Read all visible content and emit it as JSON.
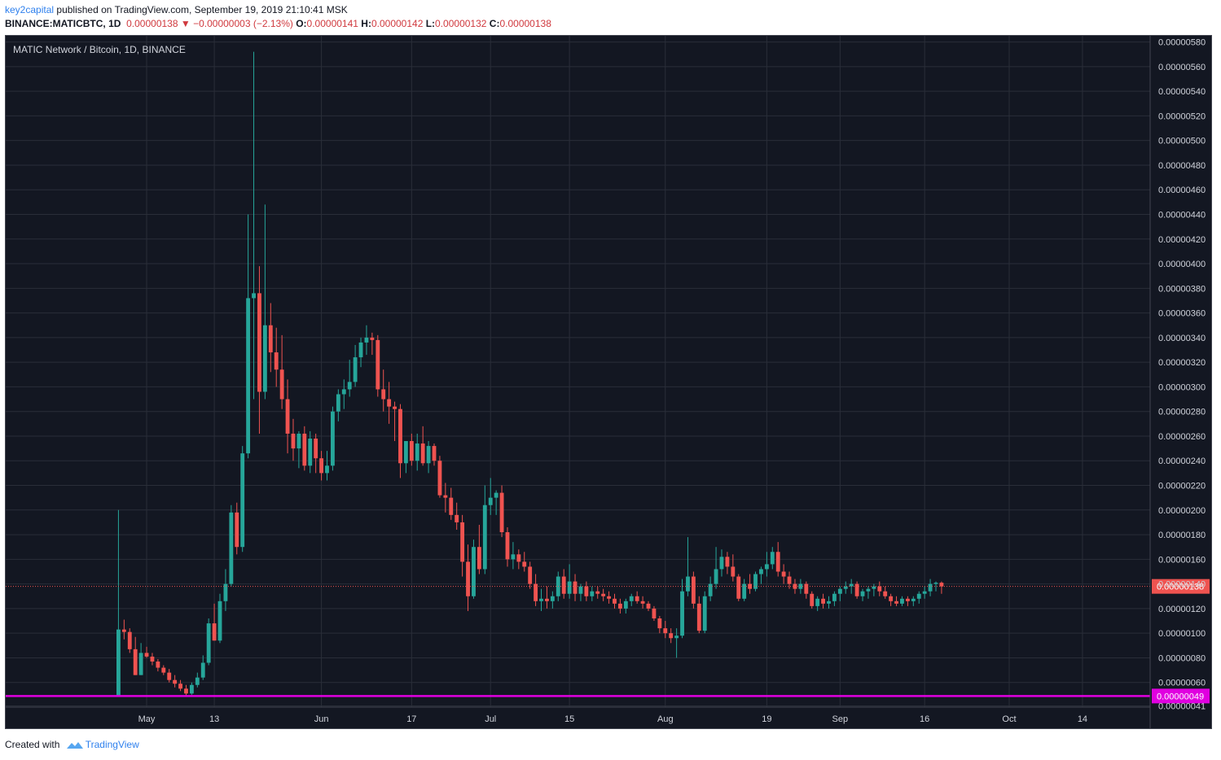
{
  "header": {
    "author": "key2capital",
    "published_text": "published on TradingView.com, September 19, 2019 21:10:41 MSK",
    "symbol": "BINANCE:MATICBTC, 1D",
    "last": "0.00000138",
    "change_arrow": "▼",
    "change": "−0.00000003 (−2.13%)",
    "o_label": "O:",
    "o_value": "0.00000141",
    "h_label": "H:",
    "h_value": "0.00000142",
    "l_label": "L:",
    "l_value": "0.00000132",
    "c_label": "C:",
    "c_value": "0.00000138"
  },
  "footer": {
    "created_with": "Created with",
    "brand": "TradingView",
    "logo_icon": "tradingview-logo-icon"
  },
  "colors": {
    "background": "#131722",
    "grid": "#2a2e39",
    "up": "#26a69a",
    "down": "#ef5350",
    "support": "#e000e0",
    "last_price": "#ef5350",
    "axis_text": "#d1d4dc"
  },
  "chart_data": {
    "type": "candlestick",
    "title": "MATIC Network / Bitcoin, 1D, BINANCE",
    "x_ticks": [
      "May",
      "13",
      "Jun",
      "17",
      "Jul",
      "15",
      "Aug",
      "19",
      "Sep",
      "16",
      "Oct",
      "14"
    ],
    "x_tick_dates": [
      "2019-05-01",
      "2019-05-13",
      "2019-06-01",
      "2019-06-17",
      "2019-07-01",
      "2019-07-15",
      "2019-08-01",
      "2019-08-19",
      "2019-09-01",
      "2019-09-16",
      "2019-10-01",
      "2019-10-14"
    ],
    "x_range": [
      "2019-04-06",
      "2019-10-26"
    ],
    "y_ticks": [
      "0.00000580",
      "0.00000560",
      "0.00000540",
      "0.00000520",
      "0.00000500",
      "0.00000480",
      "0.00000460",
      "0.00000440",
      "0.00000420",
      "0.00000400",
      "0.00000380",
      "0.00000360",
      "0.00000340",
      "0.00000320",
      "0.00000300",
      "0.00000280",
      "0.00000260",
      "0.00000240",
      "0.00000220",
      "0.00000200",
      "0.00000180",
      "0.00000160",
      "0.00000140",
      "0.00000120",
      "0.00000100",
      "0.00000080",
      "0.00000060",
      "0.00000041"
    ],
    "y_range": [
      4e-07,
      5.85e-06
    ],
    "last_price_label": "0.00000138",
    "last_price": 1.38e-06,
    "support_label": "0.00000049",
    "support_level": 4.9e-07,
    "grid": true,
    "ohlc_units": "1e-8 BTC",
    "candles": [
      {
        "date": "2019-04-26",
        "o": 49,
        "h": 200,
        "l": 49,
        "c": 103
      },
      {
        "date": "2019-04-27",
        "o": 103,
        "h": 111,
        "l": 95,
        "c": 101
      },
      {
        "date": "2019-04-28",
        "o": 101,
        "h": 104,
        "l": 84,
        "c": 87
      },
      {
        "date": "2019-04-29",
        "o": 87,
        "h": 97,
        "l": 66,
        "c": 66
      },
      {
        "date": "2019-04-30",
        "o": 66,
        "h": 92,
        "l": 66,
        "c": 84
      },
      {
        "date": "2019-05-01",
        "o": 84,
        "h": 89,
        "l": 80,
        "c": 81
      },
      {
        "date": "2019-05-02",
        "o": 81,
        "h": 84,
        "l": 74,
        "c": 77
      },
      {
        "date": "2019-05-03",
        "o": 77,
        "h": 79,
        "l": 69,
        "c": 72
      },
      {
        "date": "2019-05-04",
        "o": 72,
        "h": 74,
        "l": 66,
        "c": 68
      },
      {
        "date": "2019-05-05",
        "o": 68,
        "h": 71,
        "l": 60,
        "c": 62
      },
      {
        "date": "2019-05-06",
        "o": 62,
        "h": 66,
        "l": 56,
        "c": 59
      },
      {
        "date": "2019-05-07",
        "o": 59,
        "h": 62,
        "l": 53,
        "c": 55
      },
      {
        "date": "2019-05-08",
        "o": 55,
        "h": 58,
        "l": 49,
        "c": 51
      },
      {
        "date": "2019-05-09",
        "o": 51,
        "h": 60,
        "l": 50,
        "c": 58
      },
      {
        "date": "2019-05-10",
        "o": 58,
        "h": 68,
        "l": 56,
        "c": 64
      },
      {
        "date": "2019-05-11",
        "o": 64,
        "h": 82,
        "l": 62,
        "c": 76
      },
      {
        "date": "2019-05-12",
        "o": 76,
        "h": 112,
        "l": 74,
        "c": 108
      },
      {
        "date": "2019-05-13",
        "o": 108,
        "h": 124,
        "l": 94,
        "c": 94
      },
      {
        "date": "2019-05-14",
        "o": 94,
        "h": 132,
        "l": 92,
        "c": 126
      },
      {
        "date": "2019-05-15",
        "o": 126,
        "h": 152,
        "l": 118,
        "c": 140
      },
      {
        "date": "2019-05-16",
        "o": 140,
        "h": 204,
        "l": 138,
        "c": 198
      },
      {
        "date": "2019-05-17",
        "o": 198,
        "h": 206,
        "l": 164,
        "c": 170
      },
      {
        "date": "2019-05-18",
        "o": 170,
        "h": 252,
        "l": 166,
        "c": 246
      },
      {
        "date": "2019-05-19",
        "o": 246,
        "h": 440,
        "l": 242,
        "c": 372
      },
      {
        "date": "2019-05-20",
        "o": 372,
        "h": 572,
        "l": 290,
        "c": 376
      },
      {
        "date": "2019-05-21",
        "o": 376,
        "h": 398,
        "l": 262,
        "c": 296
      },
      {
        "date": "2019-05-22",
        "o": 296,
        "h": 448,
        "l": 290,
        "c": 350
      },
      {
        "date": "2019-05-23",
        "o": 350,
        "h": 368,
        "l": 312,
        "c": 328
      },
      {
        "date": "2019-05-24",
        "o": 328,
        "h": 348,
        "l": 300,
        "c": 314
      },
      {
        "date": "2019-05-25",
        "o": 314,
        "h": 342,
        "l": 282,
        "c": 290
      },
      {
        "date": "2019-05-26",
        "o": 290,
        "h": 306,
        "l": 246,
        "c": 262
      },
      {
        "date": "2019-05-27",
        "o": 262,
        "h": 274,
        "l": 240,
        "c": 250
      },
      {
        "date": "2019-05-28",
        "o": 250,
        "h": 264,
        "l": 234,
        "c": 262
      },
      {
        "date": "2019-05-29",
        "o": 262,
        "h": 268,
        "l": 232,
        "c": 236
      },
      {
        "date": "2019-05-30",
        "o": 236,
        "h": 264,
        "l": 230,
        "c": 258
      },
      {
        "date": "2019-05-31",
        "o": 258,
        "h": 262,
        "l": 230,
        "c": 242
      },
      {
        "date": "2019-06-01",
        "o": 242,
        "h": 248,
        "l": 224,
        "c": 230
      },
      {
        "date": "2019-06-02",
        "o": 230,
        "h": 248,
        "l": 224,
        "c": 236
      },
      {
        "date": "2019-06-03",
        "o": 236,
        "h": 284,
        "l": 232,
        "c": 280
      },
      {
        "date": "2019-06-04",
        "o": 280,
        "h": 298,
        "l": 272,
        "c": 294
      },
      {
        "date": "2019-06-05",
        "o": 294,
        "h": 306,
        "l": 282,
        "c": 298
      },
      {
        "date": "2019-06-06",
        "o": 298,
        "h": 322,
        "l": 292,
        "c": 304
      },
      {
        "date": "2019-06-07",
        "o": 304,
        "h": 334,
        "l": 300,
        "c": 324
      },
      {
        "date": "2019-06-08",
        "o": 324,
        "h": 340,
        "l": 316,
        "c": 336
      },
      {
        "date": "2019-06-09",
        "o": 336,
        "h": 350,
        "l": 326,
        "c": 340
      },
      {
        "date": "2019-06-10",
        "o": 340,
        "h": 344,
        "l": 326,
        "c": 338
      },
      {
        "date": "2019-06-11",
        "o": 338,
        "h": 342,
        "l": 292,
        "c": 298
      },
      {
        "date": "2019-06-12",
        "o": 298,
        "h": 314,
        "l": 280,
        "c": 290
      },
      {
        "date": "2019-06-13",
        "o": 290,
        "h": 304,
        "l": 270,
        "c": 284
      },
      {
        "date": "2019-06-14",
        "o": 284,
        "h": 288,
        "l": 256,
        "c": 282
      },
      {
        "date": "2019-06-15",
        "o": 282,
        "h": 286,
        "l": 226,
        "c": 238
      },
      {
        "date": "2019-06-16",
        "o": 238,
        "h": 256,
        "l": 230,
        "c": 256
      },
      {
        "date": "2019-06-17",
        "o": 256,
        "h": 262,
        "l": 236,
        "c": 240
      },
      {
        "date": "2019-06-18",
        "o": 240,
        "h": 262,
        "l": 232,
        "c": 254
      },
      {
        "date": "2019-06-19",
        "o": 254,
        "h": 268,
        "l": 236,
        "c": 238
      },
      {
        "date": "2019-06-20",
        "o": 238,
        "h": 256,
        "l": 230,
        "c": 252
      },
      {
        "date": "2019-06-21",
        "o": 252,
        "h": 254,
        "l": 236,
        "c": 240
      },
      {
        "date": "2019-06-22",
        "o": 240,
        "h": 244,
        "l": 210,
        "c": 212
      },
      {
        "date": "2019-06-23",
        "o": 212,
        "h": 222,
        "l": 198,
        "c": 210
      },
      {
        "date": "2019-06-24",
        "o": 210,
        "h": 218,
        "l": 192,
        "c": 196
      },
      {
        "date": "2019-06-25",
        "o": 196,
        "h": 206,
        "l": 184,
        "c": 190
      },
      {
        "date": "2019-06-26",
        "o": 190,
        "h": 196,
        "l": 146,
        "c": 158
      },
      {
        "date": "2019-06-27",
        "o": 158,
        "h": 172,
        "l": 118,
        "c": 130
      },
      {
        "date": "2019-06-28",
        "o": 130,
        "h": 176,
        "l": 128,
        "c": 170
      },
      {
        "date": "2019-06-29",
        "o": 170,
        "h": 188,
        "l": 148,
        "c": 152
      },
      {
        "date": "2019-06-30",
        "o": 152,
        "h": 220,
        "l": 148,
        "c": 204
      },
      {
        "date": "2019-07-01",
        "o": 204,
        "h": 226,
        "l": 196,
        "c": 210
      },
      {
        "date": "2019-07-02",
        "o": 210,
        "h": 216,
        "l": 196,
        "c": 214
      },
      {
        "date": "2019-07-03",
        "o": 214,
        "h": 220,
        "l": 178,
        "c": 182
      },
      {
        "date": "2019-07-04",
        "o": 182,
        "h": 186,
        "l": 154,
        "c": 160
      },
      {
        "date": "2019-07-05",
        "o": 160,
        "h": 174,
        "l": 152,
        "c": 164
      },
      {
        "date": "2019-07-06",
        "o": 164,
        "h": 168,
        "l": 152,
        "c": 158
      },
      {
        "date": "2019-07-07",
        "o": 158,
        "h": 166,
        "l": 150,
        "c": 154
      },
      {
        "date": "2019-07-08",
        "o": 154,
        "h": 158,
        "l": 136,
        "c": 140
      },
      {
        "date": "2019-07-09",
        "o": 140,
        "h": 148,
        "l": 122,
        "c": 126
      },
      {
        "date": "2019-07-10",
        "o": 126,
        "h": 136,
        "l": 118,
        "c": 128
      },
      {
        "date": "2019-07-11",
        "o": 128,
        "h": 138,
        "l": 120,
        "c": 126
      },
      {
        "date": "2019-07-12",
        "o": 126,
        "h": 134,
        "l": 120,
        "c": 130
      },
      {
        "date": "2019-07-13",
        "o": 130,
        "h": 150,
        "l": 126,
        "c": 146
      },
      {
        "date": "2019-07-14",
        "o": 146,
        "h": 152,
        "l": 128,
        "c": 132
      },
      {
        "date": "2019-07-15",
        "o": 132,
        "h": 156,
        "l": 128,
        "c": 142
      },
      {
        "date": "2019-07-16",
        "o": 142,
        "h": 148,
        "l": 126,
        "c": 132
      },
      {
        "date": "2019-07-17",
        "o": 132,
        "h": 140,
        "l": 126,
        "c": 138
      },
      {
        "date": "2019-07-18",
        "o": 138,
        "h": 142,
        "l": 126,
        "c": 130
      },
      {
        "date": "2019-07-19",
        "o": 130,
        "h": 138,
        "l": 126,
        "c": 134
      },
      {
        "date": "2019-07-20",
        "o": 134,
        "h": 138,
        "l": 128,
        "c": 132
      },
      {
        "date": "2019-07-21",
        "o": 132,
        "h": 136,
        "l": 126,
        "c": 130
      },
      {
        "date": "2019-07-22",
        "o": 130,
        "h": 134,
        "l": 124,
        "c": 128
      },
      {
        "date": "2019-07-23",
        "o": 128,
        "h": 132,
        "l": 120,
        "c": 124
      },
      {
        "date": "2019-07-24",
        "o": 124,
        "h": 128,
        "l": 116,
        "c": 120
      },
      {
        "date": "2019-07-25",
        "o": 120,
        "h": 128,
        "l": 116,
        "c": 126
      },
      {
        "date": "2019-07-26",
        "o": 126,
        "h": 132,
        "l": 122,
        "c": 130
      },
      {
        "date": "2019-07-27",
        "o": 130,
        "h": 134,
        "l": 124,
        "c": 126
      },
      {
        "date": "2019-07-28",
        "o": 126,
        "h": 130,
        "l": 120,
        "c": 124
      },
      {
        "date": "2019-07-29",
        "o": 124,
        "h": 126,
        "l": 118,
        "c": 120
      },
      {
        "date": "2019-07-30",
        "o": 120,
        "h": 122,
        "l": 110,
        "c": 112
      },
      {
        "date": "2019-07-31",
        "o": 112,
        "h": 114,
        "l": 100,
        "c": 104
      },
      {
        "date": "2019-08-01",
        "o": 104,
        "h": 110,
        "l": 96,
        "c": 100
      },
      {
        "date": "2019-08-02",
        "o": 100,
        "h": 104,
        "l": 92,
        "c": 96
      },
      {
        "date": "2019-08-03",
        "o": 96,
        "h": 104,
        "l": 80,
        "c": 98
      },
      {
        "date": "2019-08-04",
        "o": 98,
        "h": 144,
        "l": 96,
        "c": 134
      },
      {
        "date": "2019-08-05",
        "o": 134,
        "h": 178,
        "l": 130,
        "c": 146
      },
      {
        "date": "2019-08-06",
        "o": 146,
        "h": 150,
        "l": 120,
        "c": 124
      },
      {
        "date": "2019-08-07",
        "o": 124,
        "h": 130,
        "l": 100,
        "c": 102
      },
      {
        "date": "2019-08-08",
        "o": 102,
        "h": 134,
        "l": 100,
        "c": 130
      },
      {
        "date": "2019-08-09",
        "o": 130,
        "h": 146,
        "l": 126,
        "c": 140
      },
      {
        "date": "2019-08-10",
        "o": 140,
        "h": 170,
        "l": 136,
        "c": 152
      },
      {
        "date": "2019-08-11",
        "o": 152,
        "h": 168,
        "l": 146,
        "c": 162
      },
      {
        "date": "2019-08-12",
        "o": 162,
        "h": 166,
        "l": 148,
        "c": 154
      },
      {
        "date": "2019-08-13",
        "o": 154,
        "h": 164,
        "l": 142,
        "c": 146
      },
      {
        "date": "2019-08-14",
        "o": 146,
        "h": 148,
        "l": 126,
        "c": 128
      },
      {
        "date": "2019-08-15",
        "o": 128,
        "h": 144,
        "l": 126,
        "c": 140
      },
      {
        "date": "2019-08-16",
        "o": 140,
        "h": 148,
        "l": 132,
        "c": 136
      },
      {
        "date": "2019-08-17",
        "o": 136,
        "h": 150,
        "l": 134,
        "c": 148
      },
      {
        "date": "2019-08-18",
        "o": 148,
        "h": 154,
        "l": 140,
        "c": 152
      },
      {
        "date": "2019-08-19",
        "o": 152,
        "h": 166,
        "l": 146,
        "c": 156
      },
      {
        "date": "2019-08-20",
        "o": 156,
        "h": 170,
        "l": 152,
        "c": 166
      },
      {
        "date": "2019-08-21",
        "o": 166,
        "h": 174,
        "l": 146,
        "c": 150
      },
      {
        "date": "2019-08-22",
        "o": 150,
        "h": 156,
        "l": 140,
        "c": 146
      },
      {
        "date": "2019-08-23",
        "o": 146,
        "h": 150,
        "l": 136,
        "c": 140
      },
      {
        "date": "2019-08-24",
        "o": 140,
        "h": 144,
        "l": 132,
        "c": 136
      },
      {
        "date": "2019-08-25",
        "o": 136,
        "h": 144,
        "l": 132,
        "c": 140
      },
      {
        "date": "2019-08-26",
        "o": 140,
        "h": 142,
        "l": 128,
        "c": 132
      },
      {
        "date": "2019-08-27",
        "o": 132,
        "h": 134,
        "l": 120,
        "c": 122
      },
      {
        "date": "2019-08-28",
        "o": 122,
        "h": 130,
        "l": 118,
        "c": 128
      },
      {
        "date": "2019-08-29",
        "o": 128,
        "h": 132,
        "l": 120,
        "c": 124
      },
      {
        "date": "2019-08-30",
        "o": 124,
        "h": 130,
        "l": 120,
        "c": 126
      },
      {
        "date": "2019-08-31",
        "o": 126,
        "h": 134,
        "l": 122,
        "c": 132
      },
      {
        "date": "2019-09-01",
        "o": 132,
        "h": 138,
        "l": 126,
        "c": 136
      },
      {
        "date": "2019-09-02",
        "o": 136,
        "h": 142,
        "l": 132,
        "c": 138
      },
      {
        "date": "2019-09-03",
        "o": 138,
        "h": 144,
        "l": 132,
        "c": 140
      },
      {
        "date": "2019-09-04",
        "o": 140,
        "h": 142,
        "l": 128,
        "c": 130
      },
      {
        "date": "2019-09-05",
        "o": 130,
        "h": 136,
        "l": 126,
        "c": 134
      },
      {
        "date": "2019-09-06",
        "o": 134,
        "h": 138,
        "l": 128,
        "c": 136
      },
      {
        "date": "2019-09-07",
        "o": 136,
        "h": 140,
        "l": 130,
        "c": 138
      },
      {
        "date": "2019-09-08",
        "o": 138,
        "h": 142,
        "l": 130,
        "c": 134
      },
      {
        "date": "2019-09-09",
        "o": 134,
        "h": 138,
        "l": 128,
        "c": 130
      },
      {
        "date": "2019-09-10",
        "o": 130,
        "h": 132,
        "l": 122,
        "c": 126
      },
      {
        "date": "2019-09-11",
        "o": 126,
        "h": 130,
        "l": 122,
        "c": 124
      },
      {
        "date": "2019-09-12",
        "o": 124,
        "h": 130,
        "l": 122,
        "c": 128
      },
      {
        "date": "2019-09-13",
        "o": 128,
        "h": 130,
        "l": 122,
        "c": 126
      },
      {
        "date": "2019-09-14",
        "o": 126,
        "h": 130,
        "l": 122,
        "c": 128
      },
      {
        "date": "2019-09-15",
        "o": 128,
        "h": 134,
        "l": 124,
        "c": 132
      },
      {
        "date": "2019-09-16",
        "o": 132,
        "h": 138,
        "l": 128,
        "c": 134
      },
      {
        "date": "2019-09-17",
        "o": 134,
        "h": 144,
        "l": 130,
        "c": 140
      },
      {
        "date": "2019-09-18",
        "o": 140,
        "h": 142,
        "l": 134,
        "c": 141
      },
      {
        "date": "2019-09-19",
        "o": 141,
        "h": 142,
        "l": 132,
        "c": 138
      }
    ]
  }
}
